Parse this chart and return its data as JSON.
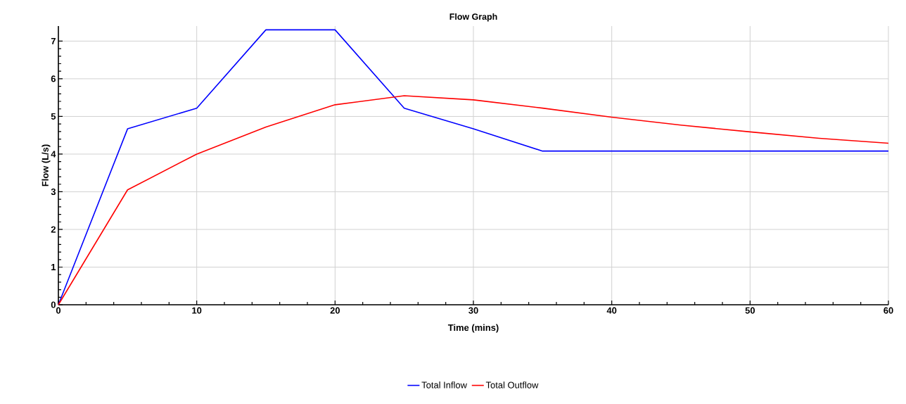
{
  "chart_data": {
    "type": "line",
    "title": "Flow Graph",
    "xlabel": "Time (mins)",
    "ylabel": "Flow (L/s)",
    "xlim": [
      0,
      60
    ],
    "ylim": [
      0,
      7.4
    ],
    "xticks": [
      0,
      10,
      20,
      30,
      40,
      50,
      60
    ],
    "yticks": [
      0,
      1,
      2,
      3,
      4,
      5,
      6,
      7
    ],
    "grid": true,
    "legend": "bottom",
    "marker": "none",
    "line_style": "solid",
    "series": [
      {
        "name": "Total Inflow",
        "color": "#0000ff",
        "x": [
          0,
          5,
          10,
          15,
          20,
          25,
          30,
          35,
          60
        ],
        "values": [
          0,
          4.67,
          5.22,
          7.3,
          7.3,
          5.22,
          4.67,
          4.08,
          4.08
        ]
      },
      {
        "name": "Total Outflow",
        "color": "#ff0000",
        "x": [
          0,
          5,
          10,
          15,
          20,
          25,
          30,
          35,
          40,
          45,
          50,
          55,
          60
        ],
        "values": [
          0,
          3.05,
          4.0,
          4.72,
          5.31,
          5.55,
          5.44,
          5.22,
          4.98,
          4.77,
          4.59,
          4.42,
          4.29
        ]
      }
    ]
  }
}
